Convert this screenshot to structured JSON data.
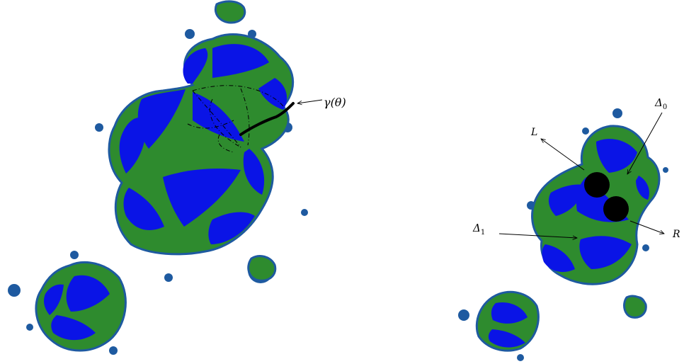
{
  "colors": {
    "green": "#2e8b2e",
    "blue": "#0a14e6",
    "filament": "#1e5aa0",
    "ink": "#000000",
    "background": "#ffffff"
  },
  "left_figure": {
    "curve_label": "γ(θ)"
  },
  "right_figure": {
    "label_L": "L",
    "label_R": "R",
    "label_delta0": "Δ",
    "label_delta0_sub": "0",
    "label_delta1": "Δ",
    "label_delta1_sub": "1"
  }
}
